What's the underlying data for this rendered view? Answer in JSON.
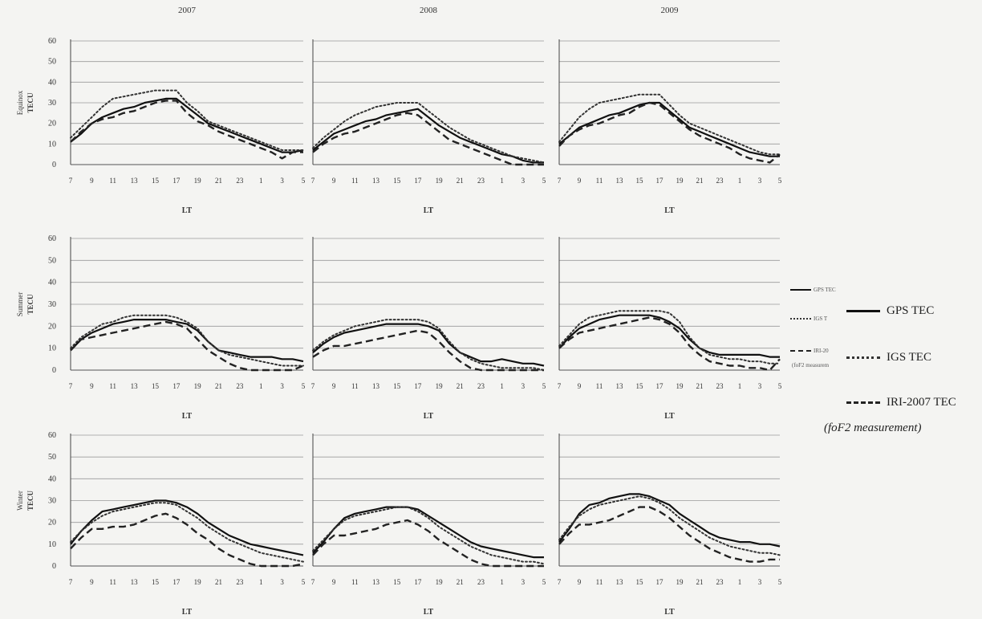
{
  "chart_data": {
    "type": "line",
    "title": "",
    "years": [
      "2007",
      "2008",
      "2009"
    ],
    "seasons": [
      "Equinox",
      "Summer",
      "Winter"
    ],
    "ylabel": "TECU",
    "xlabel": "LT",
    "ylim": [
      0,
      60
    ],
    "yticks": [
      "0",
      "10",
      "20",
      "30",
      "40",
      "50",
      "60"
    ],
    "x_categories": [
      "7",
      "8",
      "9",
      "10",
      "11",
      "12",
      "13",
      "14",
      "15",
      "16",
      "17",
      "18",
      "19",
      "20",
      "21",
      "22",
      "23",
      "0",
      "1",
      "2",
      "3",
      "4",
      "5"
    ],
    "x_tick_labels": [
      "7",
      "9",
      "11",
      "13",
      "15",
      "17",
      "19",
      "21",
      "23",
      "1",
      "3",
      "5"
    ],
    "grid": true,
    "series_styles": [
      {
        "name": "GPS TEC",
        "color": "#111111",
        "dash": "solid"
      },
      {
        "name": "IGS TEC",
        "color": "#333333",
        "dash": "dotted"
      },
      {
        "name": "IRI-2007 TEC",
        "color": "#222222",
        "dash": "dashed"
      }
    ],
    "panels": [
      {
        "season": "Equinox",
        "year": "2007",
        "series": [
          {
            "name": "GPS TEC",
            "values": [
              11,
              15,
              20,
              23,
              25,
              27,
              28,
              30,
              31,
              32,
              32,
              28,
              24,
              20,
              18,
              16,
              14,
              12,
              10,
              8,
              6,
              6,
              7
            ]
          },
          {
            "name": "IGS TEC",
            "values": [
              13,
              18,
              23,
              28,
              32,
              33,
              34,
              35,
              36,
              36,
              36,
              30,
              26,
              21,
              19,
              17,
              15,
              13,
              11,
              9,
              7,
              7,
              7
            ]
          },
          {
            "name": "IRI-2007 TEC",
            "values": [
              11,
              16,
              20,
              22,
              23,
              25,
              26,
              28,
              30,
              31,
              31,
              25,
              21,
              19,
              16,
              14,
              12,
              10,
              8,
              6,
              3,
              6,
              6
            ]
          }
        ]
      },
      {
        "season": "Equinox",
        "year": "2008",
        "series": [
          {
            "name": "GPS TEC",
            "values": [
              7,
              11,
              15,
              17,
              19,
              21,
              22,
              24,
              25,
              26,
              27,
              23,
              19,
              16,
              13,
              11,
              9,
              7,
              5,
              4,
              2,
              1,
              1
            ]
          },
          {
            "name": "IGS TEC",
            "values": [
              8,
              13,
              17,
              21,
              24,
              26,
              28,
              29,
              30,
              30,
              30,
              26,
              22,
              18,
              15,
              12,
              10,
              8,
              6,
              4,
              3,
              2,
              1
            ]
          },
          {
            "name": "IRI-2007 TEC",
            "values": [
              6,
              10,
              13,
              15,
              16,
              18,
              20,
              22,
              24,
              25,
              24,
              20,
              16,
              12,
              10,
              8,
              6,
              4,
              2,
              0,
              0,
              0,
              0
            ]
          }
        ]
      },
      {
        "season": "Equinox",
        "year": "2009",
        "series": [
          {
            "name": "GPS TEC",
            "values": [
              10,
              14,
              18,
              20,
              22,
              24,
              25,
              27,
              29,
              30,
              30,
              26,
              22,
              18,
              16,
              14,
              12,
              10,
              8,
              6,
              5,
              4,
              4
            ]
          },
          {
            "name": "IGS TEC",
            "values": [
              11,
              17,
              23,
              27,
              30,
              31,
              32,
              33,
              34,
              34,
              34,
              29,
              24,
              20,
              18,
              16,
              14,
              12,
              10,
              8,
              6,
              5,
              5
            ]
          },
          {
            "name": "IRI-2007 TEC",
            "values": [
              9,
              14,
              17,
              19,
              20,
              22,
              24,
              25,
              28,
              30,
              29,
              25,
              21,
              17,
              14,
              12,
              10,
              8,
              5,
              3,
              2,
              1,
              5
            ]
          }
        ]
      },
      {
        "season": "Summer",
        "year": "2007",
        "series": [
          {
            "name": "GPS TEC",
            "values": [
              9,
              14,
              17,
              19,
              21,
              22,
              23,
              23,
              23,
              23,
              22,
              21,
              18,
              13,
              9,
              8,
              7,
              6,
              6,
              6,
              5,
              5,
              4
            ]
          },
          {
            "name": "IGS TEC",
            "values": [
              10,
              15,
              18,
              21,
              22,
              24,
              25,
              25,
              25,
              25,
              24,
              22,
              19,
              13,
              9,
              7,
              6,
              5,
              4,
              3,
              2,
              2,
              2
            ]
          },
          {
            "name": "IRI-2007 TEC",
            "values": [
              9,
              14,
              15,
              16,
              17,
              18,
              19,
              20,
              21,
              22,
              21,
              19,
              14,
              9,
              6,
              3,
              1,
              0,
              0,
              0,
              0,
              0,
              2
            ]
          }
        ]
      },
      {
        "season": "Summer",
        "year": "2008",
        "series": [
          {
            "name": "GPS TEC",
            "values": [
              8,
              12,
              15,
              17,
              18,
              19,
              20,
              21,
              21,
              21,
              21,
              20,
              18,
              12,
              8,
              6,
              4,
              4,
              5,
              4,
              3,
              3,
              2
            ]
          },
          {
            "name": "IGS TEC",
            "values": [
              9,
              13,
              16,
              18,
              20,
              21,
              22,
              23,
              23,
              23,
              23,
              22,
              19,
              13,
              8,
              5,
              3,
              2,
              1,
              1,
              1,
              1,
              0
            ]
          },
          {
            "name": "IRI-2007 TEC",
            "values": [
              6,
              9,
              11,
              11,
              12,
              13,
              14,
              15,
              16,
              17,
              18,
              17,
              13,
              8,
              4,
              1,
              0,
              0,
              0,
              0,
              0,
              0,
              0
            ]
          }
        ]
      },
      {
        "season": "Summer",
        "year": "2009",
        "series": [
          {
            "name": "GPS TEC",
            "values": [
              10,
              15,
              19,
              21,
              23,
              24,
              25,
              25,
              25,
              25,
              24,
              22,
              19,
              14,
              10,
              8,
              7,
              7,
              7,
              7,
              7,
              6,
              6
            ]
          },
          {
            "name": "IGS TEC",
            "values": [
              11,
              16,
              21,
              24,
              25,
              26,
              27,
              27,
              27,
              27,
              27,
              26,
              22,
              15,
              10,
              7,
              6,
              5,
              5,
              4,
              4,
              3,
              3
            ]
          },
          {
            "name": "IRI-2007 TEC",
            "values": [
              10,
              14,
              17,
              18,
              19,
              20,
              21,
              22,
              23,
              24,
              23,
              21,
              17,
              11,
              7,
              4,
              3,
              2,
              2,
              1,
              1,
              0,
              5
            ]
          }
        ]
      },
      {
        "season": "Winter",
        "year": "2007",
        "series": [
          {
            "name": "GPS TEC",
            "values": [
              10,
              16,
              21,
              25,
              26,
              27,
              28,
              29,
              30,
              30,
              29,
              27,
              24,
              20,
              17,
              14,
              12,
              10,
              9,
              8,
              7,
              6,
              5
            ]
          },
          {
            "name": "IGS TEC",
            "values": [
              11,
              16,
              20,
              23,
              25,
              26,
              27,
              28,
              29,
              29,
              28,
              25,
              22,
              18,
              15,
              12,
              10,
              8,
              6,
              5,
              4,
              3,
              2
            ]
          },
          {
            "name": "IRI-2007 TEC",
            "values": [
              8,
              13,
              17,
              17,
              18,
              18,
              19,
              21,
              23,
              24,
              22,
              19,
              15,
              12,
              8,
              5,
              3,
              1,
              0,
              0,
              0,
              0,
              1
            ]
          }
        ]
      },
      {
        "season": "Winter",
        "year": "2008",
        "series": [
          {
            "name": "GPS TEC",
            "values": [
              6,
              11,
              17,
              22,
              24,
              25,
              26,
              27,
              27,
              27,
              26,
              23,
              20,
              17,
              14,
              11,
              9,
              8,
              7,
              6,
              5,
              4,
              4
            ]
          },
          {
            "name": "IGS TEC",
            "values": [
              7,
              12,
              17,
              21,
              23,
              24,
              25,
              26,
              27,
              27,
              25,
              22,
              18,
              15,
              12,
              9,
              7,
              5,
              4,
              3,
              2,
              2,
              1
            ]
          },
          {
            "name": "IRI-2007 TEC",
            "values": [
              5,
              10,
              14,
              14,
              15,
              16,
              17,
              19,
              20,
              21,
              19,
              16,
              12,
              9,
              6,
              3,
              1,
              0,
              0,
              0,
              0,
              0,
              0
            ]
          }
        ]
      },
      {
        "season": "Winter",
        "year": "2009",
        "series": [
          {
            "name": "GPS TEC",
            "values": [
              11,
              17,
              24,
              28,
              29,
              31,
              32,
              33,
              33,
              32,
              30,
              28,
              24,
              21,
              18,
              15,
              13,
              12,
              11,
              11,
              10,
              10,
              9
            ]
          },
          {
            "name": "IGS TEC",
            "values": [
              12,
              18,
              23,
              26,
              28,
              29,
              30,
              31,
              32,
              31,
              29,
              26,
              22,
              19,
              16,
              13,
              11,
              9,
              8,
              7,
              6,
              6,
              5
            ]
          },
          {
            "name": "IRI-2007 TEC",
            "values": [
              10,
              15,
              19,
              19,
              20,
              21,
              23,
              25,
              27,
              27,
              25,
              22,
              18,
              14,
              11,
              8,
              6,
              4,
              3,
              2,
              2,
              3,
              3
            ]
          }
        ]
      }
    ]
  },
  "legend_small": {
    "items": [
      {
        "label": "GPS TEC"
      },
      {
        "label": "IGS T"
      },
      {
        "label": "IRI-20"
      }
    ],
    "note": "(foF2 measurem"
  },
  "legend_big": {
    "items": [
      {
        "label": "GPS TEC"
      },
      {
        "label": "IGS TEC"
      },
      {
        "label": "IRI-2007 TEC"
      }
    ],
    "note": "(foF2 measurement)"
  }
}
